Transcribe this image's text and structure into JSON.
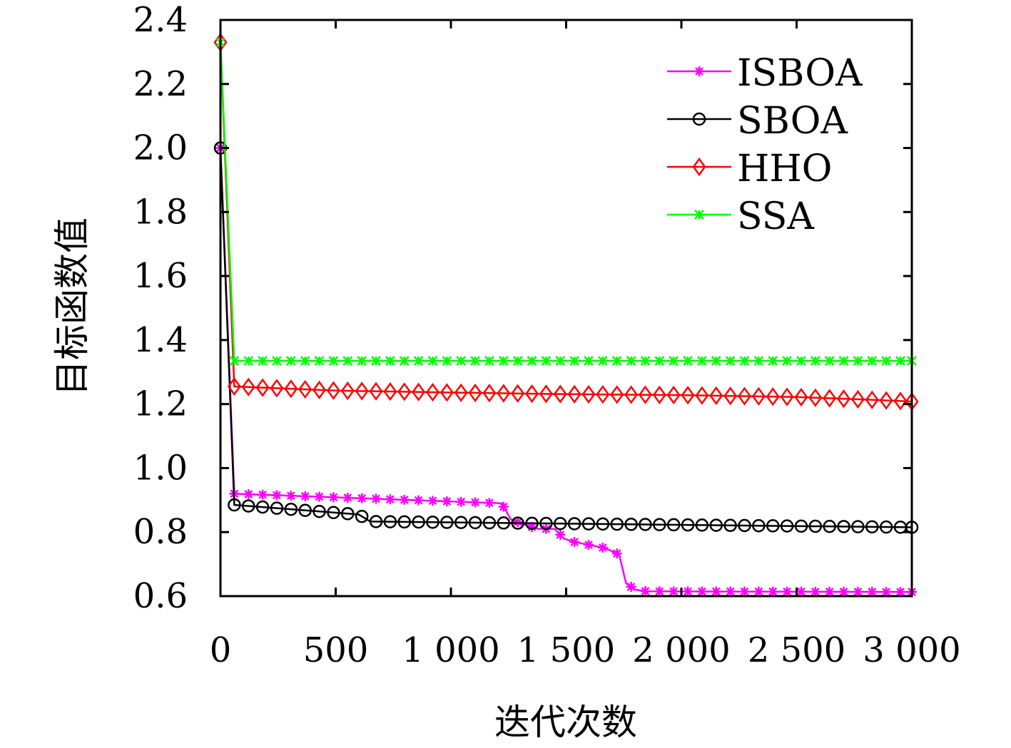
{
  "chart_data": {
    "type": "line",
    "title": "",
    "xlabel": "迭代次数",
    "ylabel": "目标函数值",
    "xlim": [
      0,
      3000
    ],
    "ylim": [
      0.6,
      2.4
    ],
    "xticks": [
      0,
      500,
      1000,
      1500,
      2000,
      2500,
      3000
    ],
    "xtick_labels": [
      "0",
      "500",
      "1 000",
      "1 500",
      "2 000",
      "2 500",
      "3 000"
    ],
    "yticks": [
      0.6,
      0.8,
      1.0,
      1.2,
      1.4,
      1.6,
      1.8,
      2.0,
      2.2,
      2.4
    ],
    "ytick_labels": [
      "0.6",
      "0.8",
      "1.0",
      "1.2",
      "1.4",
      "1.6",
      "1.8",
      "2.0",
      "2.2",
      "2.4"
    ],
    "grid": false,
    "legend_position": "top-right",
    "series": [
      {
        "name": "ISBOA",
        "color": "#ff00ff",
        "marker": "asterisk",
        "x": [
          0,
          60,
          1220,
          1260,
          1330,
          1380,
          1450,
          1490,
          1530,
          1600,
          1670,
          1700,
          1730,
          1760,
          1800,
          1850,
          3000
        ],
        "y": [
          2.0,
          0.92,
          0.89,
          0.84,
          0.82,
          0.81,
          0.81,
          0.78,
          0.77,
          0.76,
          0.75,
          0.74,
          0.73,
          0.64,
          0.62,
          0.615,
          0.613
        ]
      },
      {
        "name": "SBOA",
        "color": "#000000",
        "marker": "circle",
        "x": [
          0,
          60,
          600,
          650,
          3000
        ],
        "y": [
          2.0,
          0.885,
          0.855,
          0.833,
          0.815
        ]
      },
      {
        "name": "HHO",
        "color": "#ff0000",
        "marker": "diamond",
        "x": [
          0,
          60,
          500,
          1000,
          1500,
          2000,
          2500,
          2800,
          3000
        ],
        "y": [
          2.33,
          1.255,
          1.242,
          1.236,
          1.231,
          1.228,
          1.222,
          1.214,
          1.208
        ]
      },
      {
        "name": "SSA",
        "color": "#00ff00",
        "marker": "cross",
        "x": [
          0,
          60,
          3000
        ],
        "y": [
          2.33,
          1.335,
          1.335
        ]
      }
    ]
  }
}
